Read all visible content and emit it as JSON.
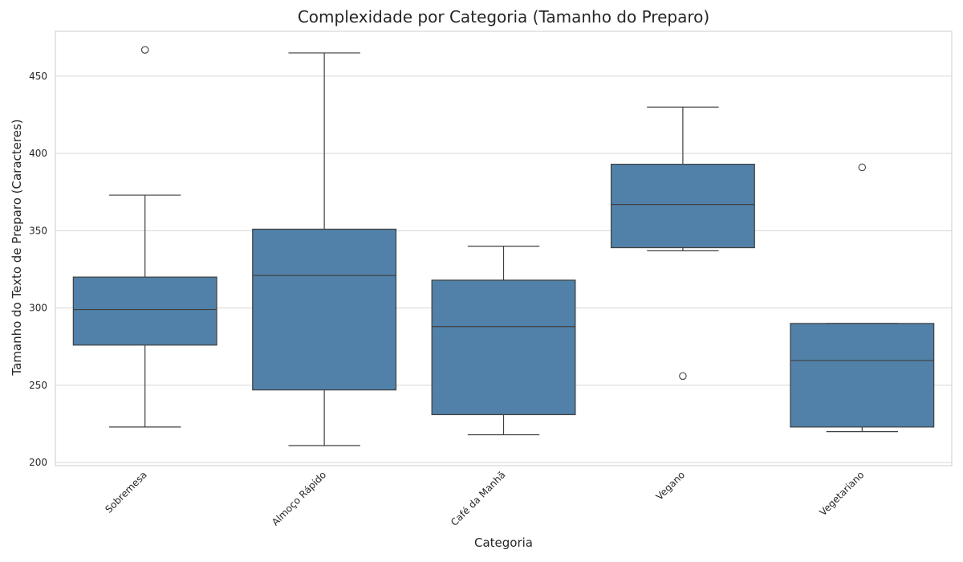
{
  "chart_data": {
    "type": "box",
    "title": "Complexidade por Categoria (Tamanho do Preparo)",
    "xlabel": "Categoria",
    "ylabel": "Tamanho do Texto de Preparo (Caracteres)",
    "ylim": [
      198,
      479
    ],
    "yticks": [
      200,
      250,
      300,
      350,
      400,
      450
    ],
    "grid": true,
    "colors": {
      "box_fill": "#5181a8",
      "line": "#3f3f3f",
      "grid": "#d6d6d6",
      "spine": "#cccccc"
    },
    "categories": [
      "Sobremesa",
      "Almoço Rápido",
      "Café da Manhã",
      "Vegano",
      "Vegetariano"
    ],
    "boxes": [
      {
        "category": "Sobremesa",
        "whisker_low": 223,
        "q1": 276,
        "median": 299,
        "q3": 320,
        "whisker_high": 373,
        "outliers": [
          467
        ]
      },
      {
        "category": "Almoço Rápido",
        "whisker_low": 211,
        "q1": 247,
        "median": 321,
        "q3": 351,
        "whisker_high": 465,
        "outliers": []
      },
      {
        "category": "Café da Manhã",
        "whisker_low": 218,
        "q1": 231,
        "median": 288,
        "q3": 318,
        "whisker_high": 340,
        "outliers": []
      },
      {
        "category": "Vegano",
        "whisker_low": 337,
        "q1": 339,
        "median": 367,
        "q3": 393,
        "whisker_high": 430,
        "outliers": [
          256
        ]
      },
      {
        "category": "Vegetariano",
        "whisker_low": 220,
        "q1": 223,
        "median": 266,
        "q3": 290,
        "whisker_high": 290,
        "outliers": [
          391
        ]
      }
    ]
  }
}
